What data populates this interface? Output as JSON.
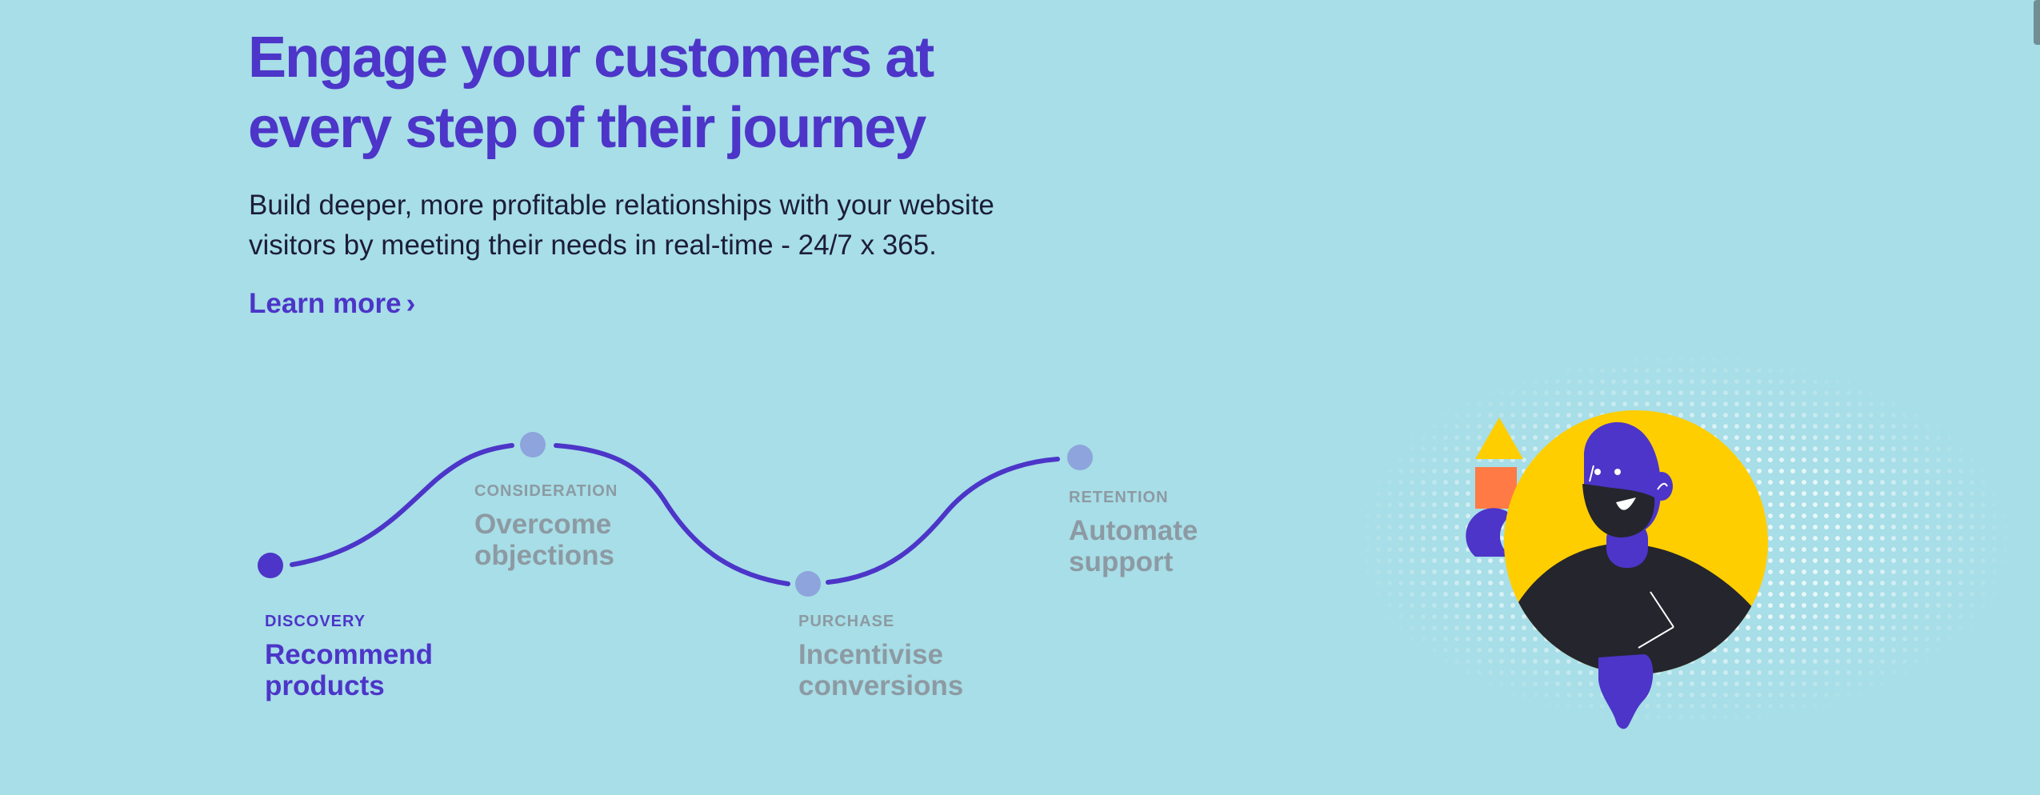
{
  "hero": {
    "title_line1": "Engage your customers at",
    "title_line2": "every step of their journey",
    "subtitle_line1": "Build deeper, more profitable relationships with your website",
    "subtitle_line2": "visitors by meeting their needs in real-time - 24/7 x 365.",
    "link_label": "Learn more",
    "link_icon": "chevron-right-icon"
  },
  "journey": {
    "stages": [
      {
        "label": "DISCOVERY",
        "title_line1": "Recommend",
        "title_line2": "products",
        "active": true
      },
      {
        "label": "CONSIDERATION",
        "title_line1": "Overcome",
        "title_line2": "objections",
        "active": false
      },
      {
        "label": "PURCHASE",
        "title_line1": "Incentivise",
        "title_line2": "conversions",
        "active": false
      },
      {
        "label": "RETENTION",
        "title_line1": "Automate",
        "title_line2": "support",
        "active": false
      }
    ]
  },
  "colors": {
    "background": "#a7dee7",
    "accent": "#4c35c8",
    "node_inactive": "#8ea4dc",
    "muted_text": "#8d9aa3",
    "yellow": "#ffce00",
    "orange": "#ff7a45",
    "dark": "#25252d"
  },
  "illustration": {
    "subject": "person-with-beard-icon",
    "shapes": [
      "triangle-icon",
      "square-icon",
      "half-circle-icon"
    ]
  }
}
